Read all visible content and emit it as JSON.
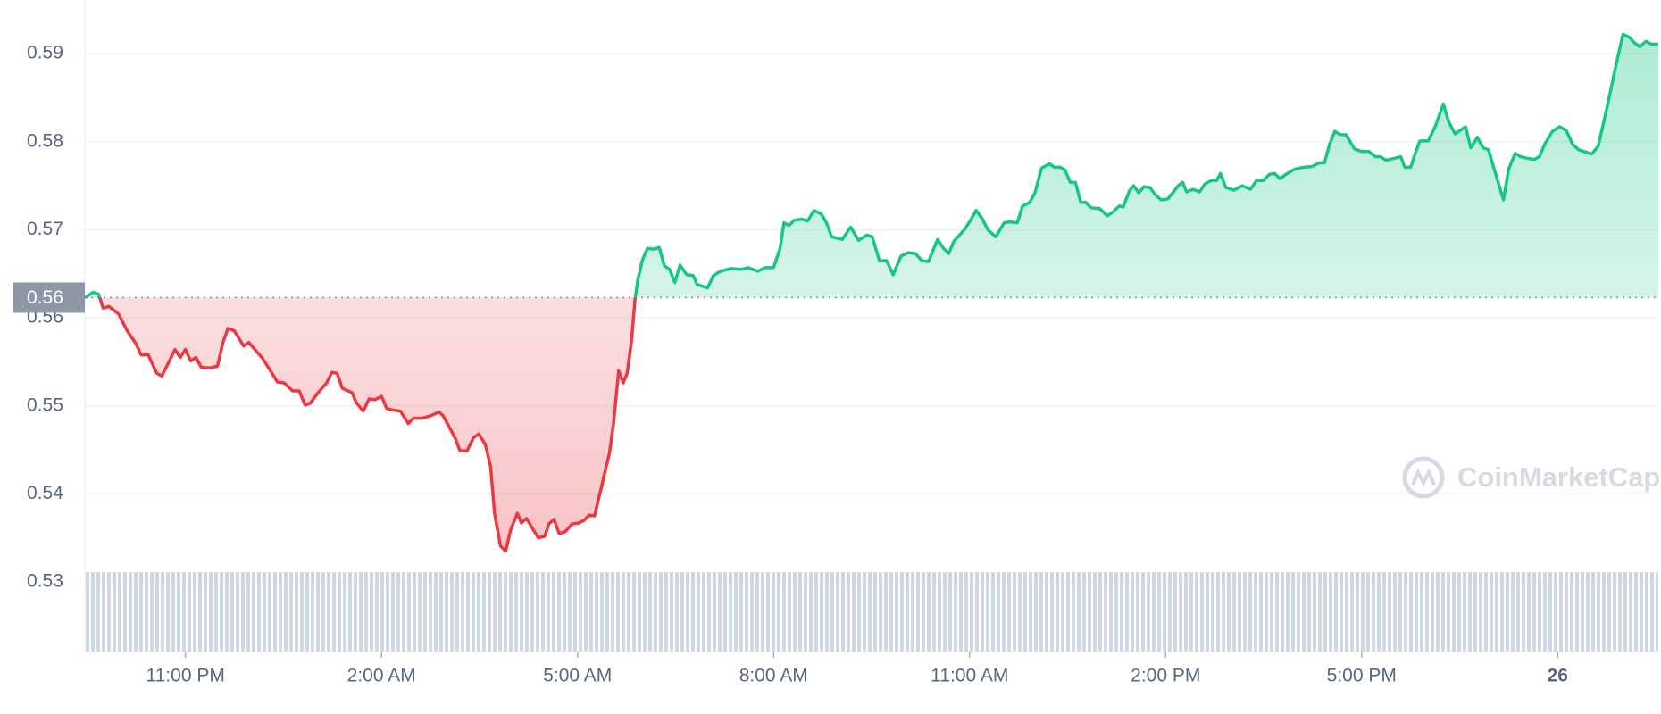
{
  "chart_data": {
    "type": "line",
    "xlim": [
      -1.54,
      22.54
    ],
    "ylim": [
      0.5221,
      0.5961
    ],
    "xticks": [
      {
        "value": 0,
        "label": "11:00 PM"
      },
      {
        "value": 3,
        "label": "2:00 AM"
      },
      {
        "value": 6,
        "label": "5:00 AM"
      },
      {
        "value": 9,
        "label": "8:00 AM"
      },
      {
        "value": 12,
        "label": "11:00 AM"
      },
      {
        "value": 15,
        "label": "2:00 PM"
      },
      {
        "value": 18,
        "label": "5:00 PM"
      },
      {
        "value": 21,
        "label": "26"
      }
    ],
    "yticks": [
      0.53,
      0.54,
      0.55,
      0.56,
      0.57,
      0.58,
      0.59
    ],
    "grid": true,
    "reference_line": {
      "value": 0.5623,
      "label": "0.56"
    },
    "watermark": "CoinMarketCap",
    "up_color": "#16c784",
    "down_color": "#ea3943",
    "x": [
      -1.54,
      -1.41,
      -1.33,
      -1.26,
      -1.17,
      -1.02,
      -0.89,
      -0.76,
      -0.68,
      -0.57,
      -0.44,
      -0.36,
      -0.16,
      -0.08,
      0,
      0.08,
      0.16,
      0.24,
      0.36,
      0.49,
      0.57,
      0.65,
      0.75,
      0.89,
      0.97,
      1.18,
      1.41,
      1.51,
      1.64,
      1.74,
      1.83,
      1.91,
      2.03,
      2.16,
      2.24,
      2.32,
      2.4,
      2.55,
      2.61,
      2.72,
      2.81,
      2.9,
      3.0,
      3.08,
      3.19,
      3.29,
      3.41,
      3.49,
      3.62,
      3.76,
      3.88,
      3.94,
      4.05,
      4.13,
      4.2,
      4.31,
      4.41,
      4.49,
      4.59,
      4.67,
      4.73,
      4.82,
      4.9,
      4.98,
      5.08,
      5.14,
      5.22,
      5.3,
      5.4,
      5.5,
      5.56,
      5.64,
      5.72,
      5.81,
      5.92,
      6.02,
      6.1,
      6.18,
      6.26,
      6.37,
      6.49,
      6.55,
      6.63,
      6.7,
      6.76,
      6.83,
      6.88,
      6.92,
      6.99,
      7.07,
      7.17,
      7.25,
      7.33,
      7.41,
      7.49,
      7.57,
      7.67,
      7.77,
      7.83,
      7.99,
      8.08,
      8.19,
      8.35,
      8.51,
      8.61,
      8.76,
      8.87,
      9.0,
      9.1,
      9.16,
      9.24,
      9.32,
      9.44,
      9.52,
      9.62,
      9.73,
      9.81,
      9.89,
      10.05,
      10.18,
      10.3,
      10.43,
      10.51,
      10.62,
      10.73,
      10.83,
      10.95,
      11.06,
      11.17,
      11.27,
      11.37,
      11.51,
      11.59,
      11.68,
      11.76,
      11.92,
      12.0,
      12.1,
      12.19,
      12.28,
      12.4,
      12.53,
      12.62,
      12.73,
      12.81,
      12.92,
      13.0,
      13.1,
      13.22,
      13.3,
      13.39,
      13.46,
      13.54,
      13.62,
      13.7,
      13.78,
      13.86,
      13.99,
      14.11,
      14.19,
      14.29,
      14.35,
      14.45,
      14.51,
      14.59,
      14.67,
      14.76,
      14.84,
      14.93,
      15.03,
      15.11,
      15.19,
      15.26,
      15.32,
      15.42,
      15.52,
      15.6,
      15.7,
      15.78,
      15.84,
      15.92,
      16.05,
      16.17,
      16.3,
      16.39,
      16.49,
      16.59,
      16.67,
      16.75,
      16.86,
      16.98,
      17.11,
      17.24,
      17.35,
      17.43,
      17.51,
      17.59,
      17.67,
      17.76,
      17.89,
      18.0,
      18.11,
      18.21,
      18.29,
      18.37,
      18.49,
      18.6,
      18.66,
      18.75,
      18.83,
      18.89,
      19.02,
      19.13,
      19.25,
      19.33,
      19.43,
      19.51,
      19.59,
      19.67,
      19.77,
      19.86,
      19.94,
      20.06,
      20.17,
      20.25,
      20.35,
      20.43,
      20.55,
      20.64,
      20.72,
      20.8,
      20.92,
      21.03,
      21.13,
      21.23,
      21.32,
      21.4,
      21.52,
      21.62,
      21.71,
      21.81,
      21.91,
      22.0,
      22.09,
      22.18,
      22.26,
      22.35,
      22.43,
      22.54
    ],
    "values": [
      0.5623,
      0.5629,
      0.5627,
      0.5611,
      0.5613,
      0.5604,
      0.5585,
      0.5571,
      0.5558,
      0.5558,
      0.5537,
      0.5534,
      0.5564,
      0.5555,
      0.5564,
      0.5551,
      0.5555,
      0.5544,
      0.5543,
      0.5545,
      0.5571,
      0.5588,
      0.5585,
      0.5568,
      0.5572,
      0.5554,
      0.5527,
      0.5526,
      0.5517,
      0.5517,
      0.5501,
      0.5503,
      0.5515,
      0.5526,
      0.5538,
      0.5537,
      0.552,
      0.5515,
      0.5504,
      0.5494,
      0.5508,
      0.5507,
      0.5511,
      0.5497,
      0.5495,
      0.5494,
      0.548,
      0.5486,
      0.5486,
      0.5489,
      0.5493,
      0.5489,
      0.5474,
      0.5463,
      0.5449,
      0.5449,
      0.5464,
      0.5468,
      0.5456,
      0.5431,
      0.5378,
      0.5341,
      0.5335,
      0.536,
      0.5378,
      0.5367,
      0.5372,
      0.5362,
      0.535,
      0.5352,
      0.5366,
      0.5371,
      0.5355,
      0.5357,
      0.5366,
      0.5367,
      0.537,
      0.5376,
      0.5375,
      0.5409,
      0.5447,
      0.5479,
      0.554,
      0.5526,
      0.5537,
      0.5576,
      0.5621,
      0.5642,
      0.5665,
      0.5679,
      0.5678,
      0.568,
      0.5659,
      0.5655,
      0.564,
      0.566,
      0.5649,
      0.5648,
      0.5638,
      0.5634,
      0.5648,
      0.5653,
      0.5656,
      0.5655,
      0.5657,
      0.5653,
      0.5657,
      0.5657,
      0.5679,
      0.5708,
      0.5705,
      0.5711,
      0.5712,
      0.571,
      0.5722,
      0.5718,
      0.5708,
      0.5692,
      0.5689,
      0.5703,
      0.5688,
      0.5694,
      0.5692,
      0.5665,
      0.5665,
      0.5649,
      0.567,
      0.5674,
      0.5673,
      0.5665,
      0.5664,
      0.5689,
      0.568,
      0.5673,
      0.5687,
      0.57,
      0.5709,
      0.5722,
      0.5713,
      0.57,
      0.5692,
      0.5708,
      0.5709,
      0.5708,
      0.5727,
      0.5731,
      0.5742,
      0.577,
      0.5775,
      0.5771,
      0.5771,
      0.5768,
      0.5754,
      0.5754,
      0.5731,
      0.5731,
      0.5725,
      0.5724,
      0.5716,
      0.572,
      0.5727,
      0.5726,
      0.5745,
      0.575,
      0.5742,
      0.5749,
      0.5748,
      0.574,
      0.5734,
      0.5735,
      0.5742,
      0.575,
      0.5754,
      0.5743,
      0.5746,
      0.5743,
      0.5752,
      0.5756,
      0.5756,
      0.5764,
      0.5748,
      0.5745,
      0.575,
      0.5746,
      0.5756,
      0.5756,
      0.5763,
      0.5764,
      0.5758,
      0.5764,
      0.5769,
      0.5771,
      0.5772,
      0.5776,
      0.5776,
      0.5797,
      0.5812,
      0.5808,
      0.5808,
      0.5792,
      0.5789,
      0.5789,
      0.5783,
      0.5783,
      0.5779,
      0.5781,
      0.5783,
      0.5771,
      0.5771,
      0.5789,
      0.5801,
      0.5801,
      0.5818,
      0.5843,
      0.5823,
      0.5809,
      0.5813,
      0.5817,
      0.5793,
      0.5805,
      0.5793,
      0.5791,
      0.5761,
      0.5734,
      0.5769,
      0.5787,
      0.5783,
      0.5781,
      0.578,
      0.5783,
      0.5797,
      0.5812,
      0.5817,
      0.5813,
      0.5797,
      0.5791,
      0.5789,
      0.5786,
      0.5795,
      0.5824,
      0.5858,
      0.5893,
      0.5922,
      0.5919,
      0.5912,
      0.5908,
      0.5914,
      0.5911,
      0.5911
    ]
  }
}
